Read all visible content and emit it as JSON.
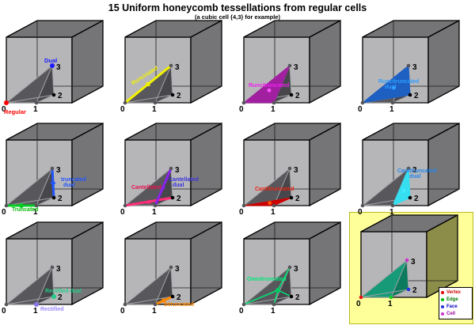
{
  "title": "15 Uniform honeycomb tessellations from regular cells",
  "subtitle": "(a cubic cell {4,3} for example)",
  "point_labels": [
    "0",
    "1",
    "2",
    "3"
  ],
  "base_colors": {
    "face_front": "#b6b6b8",
    "face_dark": "#757577",
    "tetra_front": "#58585c",
    "tetra_side": "#47474b",
    "tetra_edge": "#a2a2a6",
    "vertex_dot": "#55555a",
    "vertex_dot_face": "#000000"
  },
  "cells": [
    {
      "name": "regular-dual",
      "labels": [
        {
          "text": "Dual",
          "color": "#1a1aff"
        },
        {
          "text": "Regular",
          "color": "#ff0000"
        }
      ],
      "highlight": {
        "type": "points",
        "points": [
          {
            "v": 3,
            "color": "#1a1aff"
          },
          {
            "v": 0,
            "color": "#ff0000"
          }
        ]
      }
    },
    {
      "name": "runcinated",
      "labels": [
        {
          "text": "Runcinated",
          "color": "#f2f200"
        }
      ],
      "highlight": {
        "type": "edges",
        "edges": [
          {
            "from": 0,
            "to": 3,
            "color": "#f2f200",
            "marker": "square"
          }
        ]
      }
    },
    {
      "name": "runcitruncated",
      "labels": [
        {
          "text": "Runcitruncated",
          "color": "#ee22ee"
        }
      ],
      "highlight": {
        "type": "face",
        "verts": [
          0,
          1,
          3
        ],
        "fill": "#a020a0",
        "dot": "#ff55ff"
      }
    },
    {
      "name": "runcitruncated-dual",
      "labels": [
        {
          "text": "Runcitruncated",
          "color": "#2e9fff"
        },
        {
          "text": "dual",
          "color": "#2e9fff"
        }
      ],
      "highlight": {
        "type": "face",
        "verts": [
          0,
          2,
          3
        ],
        "fill": "#1e5fc2",
        "dot": "#2e9fff"
      }
    },
    {
      "name": "truncated",
      "labels": [
        {
          "text": "truncated",
          "color": "#2255ff"
        },
        {
          "text": "dual",
          "color": "#2255ff"
        },
        {
          "text": "Truncated",
          "color": "#00bb00"
        }
      ],
      "highlight": {
        "type": "edges",
        "edges": [
          {
            "from": 0,
            "to": 1,
            "color": "#00cc22",
            "marker": "circle"
          },
          {
            "from": 3,
            "to": 2,
            "color": "#2255ff",
            "marker": "diamond"
          }
        ]
      }
    },
    {
      "name": "cantellated",
      "labels": [
        {
          "text": "Cantellated",
          "color": "#e81050"
        },
        {
          "text": "Cantellated",
          "color": "#3b33dd"
        },
        {
          "text": "dual",
          "color": "#3b33dd"
        }
      ],
      "highlight": {
        "type": "edges",
        "edges": [
          {
            "from": 0,
            "to": 2,
            "color": "#ff2d78",
            "marker": "triangle"
          },
          {
            "from": 1,
            "to": 3,
            "color": "#8a22ee",
            "marker": "triangle"
          }
        ]
      }
    },
    {
      "name": "cantitruncated",
      "labels": [
        {
          "text": "Cantitruncated",
          "color": "#ee2211"
        }
      ],
      "highlight": {
        "type": "face",
        "verts": [
          0,
          1,
          2
        ],
        "fill": "#cc0000",
        "dot": "#ff5500"
      }
    },
    {
      "name": "cantitruncated-dual",
      "labels": [
        {
          "text": "Cantitruncated",
          "color": "#2288ee"
        },
        {
          "text": "dual",
          "color": "#2288ee"
        }
      ],
      "highlight": {
        "type": "face",
        "verts": [
          1,
          2,
          3
        ],
        "fill": "#35dff0",
        "dot": "#44e8ff"
      }
    },
    {
      "name": "rectified",
      "labels": [
        {
          "text": "Rectified dual",
          "color": "#22cc88"
        },
        {
          "text": "Rectified",
          "color": "#9988ff"
        }
      ],
      "highlight": {
        "type": "points",
        "points": [
          {
            "v": 2,
            "color": "#22cc88"
          },
          {
            "v": 1,
            "color": "#8877ee"
          }
        ]
      }
    },
    {
      "name": "bitruncated",
      "labels": [
        {
          "text": "bitruncated",
          "color": "#ff8800"
        }
      ],
      "highlight": {
        "type": "edges",
        "edges": [
          {
            "from": 1,
            "to": 2,
            "color": "#ff8800",
            "marker": "square"
          }
        ]
      }
    },
    {
      "name": "omnitruncated",
      "labels": [
        {
          "text": "Omnitruncated",
          "color": "#00e676"
        }
      ],
      "highlight": {
        "type": "star",
        "color": "#00e676",
        "center_dot": "#00cc66"
      }
    },
    {
      "name": "example-cell",
      "labels": [],
      "highlight": {
        "type": "example",
        "tetra_fills": [
          "#169a78",
          "#0c7a5c"
        ],
        "point_colors": [
          "#ee1111",
          "#11cc22",
          "#2233dd",
          "#cc33cc"
        ],
        "right_face": "#8d8d4a",
        "panel_bg": "#ffff99",
        "panel_border": "#b8b820"
      }
    }
  ],
  "legend": {
    "items": [
      {
        "label": "Vertex",
        "color": "#ee0000",
        "label_color": "#cc0000"
      },
      {
        "label": "Edge",
        "color": "#00bb00",
        "label_color": "#007700"
      },
      {
        "label": "Face",
        "color": "#2233dd",
        "label_color": "#0000bb"
      },
      {
        "label": "Cell",
        "color": "#cc33cc",
        "label_color": "#990099"
      }
    ]
  }
}
